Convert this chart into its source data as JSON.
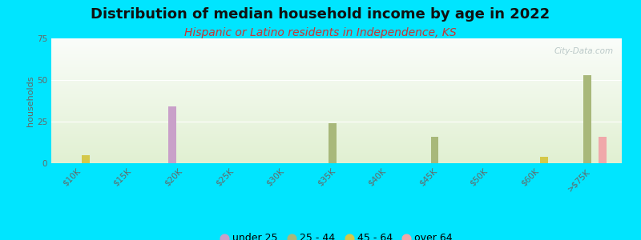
{
  "title": "Distribution of median household income by age in 2022",
  "subtitle": "Hispanic or Latino residents in Independence, KS",
  "xlabel": "",
  "ylabel": "households",
  "ylim": [
    0,
    75
  ],
  "yticks": [
    0,
    25,
    50,
    75
  ],
  "categories": [
    "$10K",
    "$15K",
    "$20K",
    "$25K",
    "$30K",
    "$35K",
    "$40K",
    "$45K",
    "$50K",
    "$60K",
    ">$75K"
  ],
  "age_groups": [
    "under 25",
    "25 - 44",
    "45 - 64",
    "over 64"
  ],
  "colors": {
    "under 25": "#c9a0c9",
    "25 - 44": "#a8b87a",
    "45 - 64": "#d4c84a",
    "over 64": "#f0a8aa"
  },
  "bar_width": 0.15,
  "data": {
    "under 25": [
      0,
      0,
      34,
      0,
      0,
      0,
      0,
      0,
      0,
      0,
      0
    ],
    "25 - 44": [
      0,
      0,
      0,
      0,
      0,
      24,
      0,
      16,
      0,
      0,
      53
    ],
    "45 - 64": [
      5,
      0,
      0,
      0,
      0,
      0,
      0,
      0,
      0,
      4,
      0
    ],
    "over 64": [
      0,
      0,
      0,
      0,
      0,
      0,
      0,
      0,
      0,
      0,
      16
    ]
  },
  "background_color": "#00e5ff",
  "watermark": "City-Data.com",
  "title_fontsize": 13,
  "subtitle_fontsize": 10,
  "subtitle_color": "#cc3333",
  "axis_label_fontsize": 8,
  "tick_fontsize": 7.5,
  "tick_color": "#666666"
}
